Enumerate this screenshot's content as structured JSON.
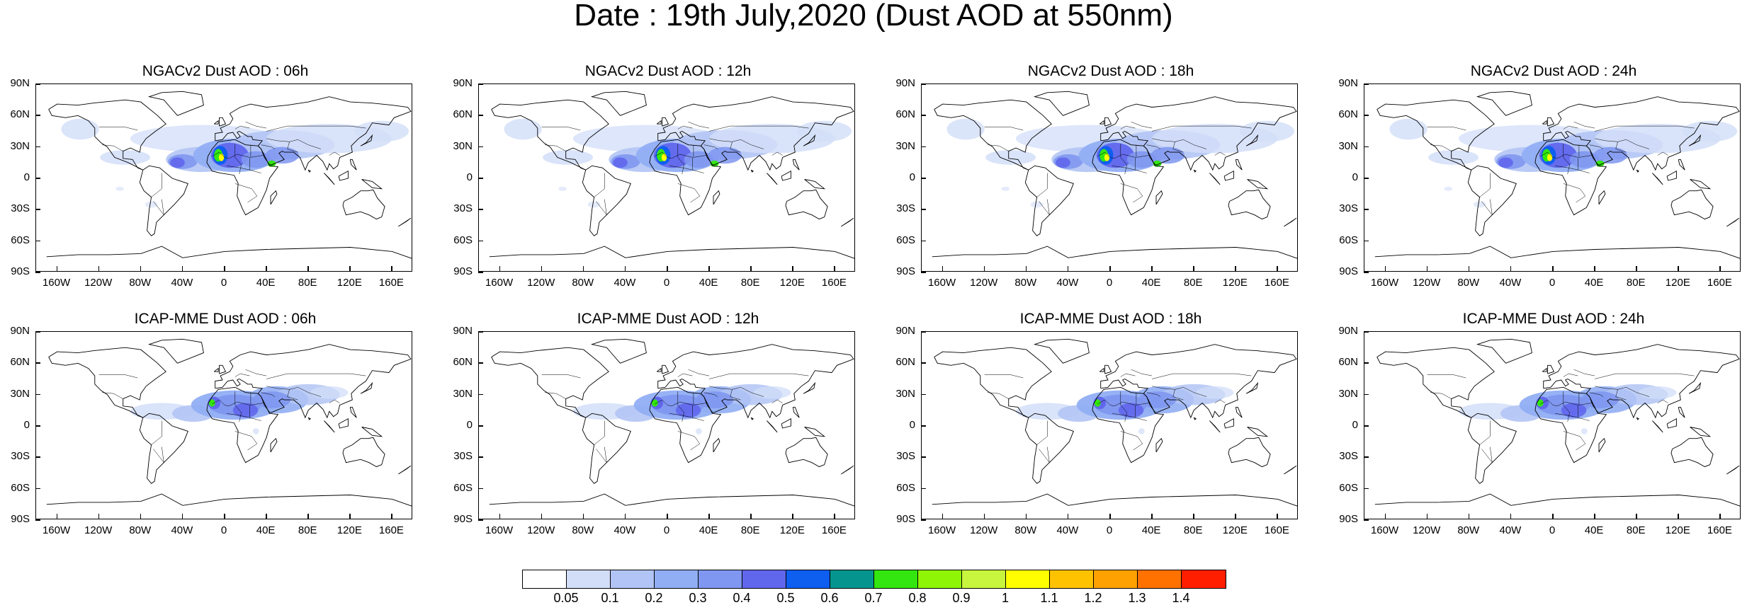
{
  "figure": {
    "title": "Date : 19th July,2020 (Dust AOD at 550nm)"
  },
  "panels": [
    {
      "title": "NGACv2 Dust AOD : 06h",
      "model": "NGACv2"
    },
    {
      "title": "NGACv2 Dust AOD : 12h",
      "model": "NGACv2"
    },
    {
      "title": "NGACv2 Dust AOD : 18h",
      "model": "NGACv2"
    },
    {
      "title": "NGACv2 Dust AOD : 24h",
      "model": "NGACv2"
    },
    {
      "title": "ICAP-MME Dust AOD : 06h",
      "model": "ICAP-MME"
    },
    {
      "title": "ICAP-MME Dust AOD : 12h",
      "model": "ICAP-MME"
    },
    {
      "title": "ICAP-MME Dust AOD : 18h",
      "model": "ICAP-MME"
    },
    {
      "title": "ICAP-MME Dust AOD : 24h",
      "model": "ICAP-MME"
    }
  ],
  "axes": {
    "lat_labels": [
      "90N",
      "60N",
      "30N",
      "0",
      "30S",
      "60S",
      "90S"
    ],
    "lon_labels": [
      "160W",
      "120W",
      "80W",
      "40W",
      "0",
      "40E",
      "80E",
      "120E",
      "160E"
    ],
    "lon_values": [
      -160,
      -120,
      -80,
      -40,
      0,
      40,
      80,
      120,
      160
    ],
    "lat_values": [
      90,
      60,
      30,
      0,
      -30,
      -60,
      -90
    ]
  },
  "colorbar": {
    "labels": [
      "0.05",
      "0.1",
      "0.2",
      "0.3",
      "0.4",
      "0.5",
      "0.6",
      "0.7",
      "0.8",
      "0.9",
      "1",
      "1.1",
      "1.2",
      "1.3",
      "1.4"
    ],
    "colors": [
      "#ffffff",
      "#d2def8",
      "#b2c4f5",
      "#91aef4",
      "#7f97f0",
      "#6167ec",
      "#0e5ef0",
      "#05958e",
      "#33e60f",
      "#8ef507",
      "#c8f53d",
      "#ffff00",
      "#ffc200",
      "#ffa100",
      "#ff7200",
      "#ff1e00"
    ]
  }
}
